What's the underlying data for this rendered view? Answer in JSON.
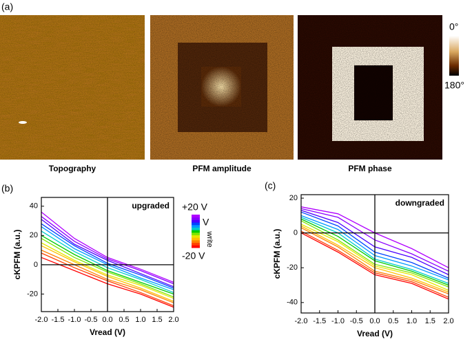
{
  "figure": {
    "panel_label": "(a)",
    "captions": [
      "Topography",
      "PFM amplitude",
      "PFM phase"
    ],
    "colorbar": {
      "top": "0°",
      "bottom": "180°"
    }
  },
  "chart_data": [
    {
      "type": "line",
      "panel_label": "(b)",
      "annotation": "upgraded",
      "x_label": "Vread (V)",
      "y_label": "cKPFM (a.u.)",
      "legend": {
        "top": "+20 V",
        "title": "V",
        "subscript": "write",
        "bottom": "-20 V"
      },
      "xlim": [
        -2,
        2
      ],
      "ylim": [
        -32,
        46
      ],
      "xticks": [
        {
          "value": -2,
          "label": "-2.0"
        },
        -1.5,
        {
          "value": -1,
          "label": "-1.0"
        },
        -0.5,
        {
          "value": 0,
          "label": "0.0"
        },
        0.5,
        {
          "value": 1,
          "label": "1.0"
        },
        1.5,
        {
          "value": 2,
          "label": "2.0"
        }
      ],
      "yticks": [
        -20,
        0,
        20,
        40
      ],
      "x": [
        -2,
        -1,
        0,
        1,
        2
      ],
      "series": [
        {
          "color": "#ff0000",
          "values": [
            5,
            -4,
            -13,
            -20,
            -29
          ]
        },
        {
          "color": "#ff4000",
          "values": [
            8,
            -2,
            -11,
            -19,
            -28
          ]
        },
        {
          "color": "#ff8000",
          "values": [
            10,
            0,
            -10,
            -17,
            -26
          ]
        },
        {
          "color": "#ffbf00",
          "values": [
            13,
            2,
            -8,
            -16,
            -25
          ]
        },
        {
          "color": "#e6e600",
          "values": [
            15,
            3,
            -7,
            -14,
            -23
          ]
        },
        {
          "color": "#80e600",
          "values": [
            18,
            5,
            -5,
            -13,
            -22
          ]
        },
        {
          "color": "#00cc00",
          "values": [
            20,
            7,
            -4,
            -12,
            -20
          ]
        },
        {
          "color": "#00cccc",
          "values": [
            23,
            9,
            -2,
            -10,
            -19
          ]
        },
        {
          "color": "#0099ff",
          "values": [
            26,
            11,
            0,
            -9,
            -17
          ]
        },
        {
          "color": "#0044ff",
          "values": [
            28,
            13,
            1,
            -7,
            -16
          ]
        },
        {
          "color": "#4b00ff",
          "values": [
            31,
            14,
            3,
            -6,
            -15
          ]
        },
        {
          "color": "#8a00ff",
          "values": [
            33,
            16,
            4,
            -4,
            -13
          ]
        },
        {
          "color": "#b000ff",
          "values": [
            36,
            18,
            5,
            -3,
            -12
          ]
        }
      ]
    },
    {
      "type": "line",
      "panel_label": "(c)",
      "annotation": "downgraded",
      "x_label": "Vread (V)",
      "y_label": "cKPFM (a.u.)",
      "xlim": [
        -2,
        2
      ],
      "ylim": [
        -46,
        22
      ],
      "xticks": [
        {
          "value": -2,
          "label": "-2.0"
        },
        -1.5,
        {
          "value": -1,
          "label": "-1.0"
        },
        -0.5,
        {
          "value": 0,
          "label": "0.0"
        },
        0.5,
        {
          "value": 1,
          "label": "1.0"
        },
        1.5,
        {
          "value": 2,
          "label": "2.0"
        }
      ],
      "yticks": [
        -40,
        -20,
        0,
        20
      ],
      "x": [
        -2,
        -1,
        0,
        1,
        2
      ],
      "series": [
        {
          "color": "#ff0000",
          "values": [
            0,
            -11,
            -24,
            -29,
            -38
          ]
        },
        {
          "color": "#ff4000",
          "values": [
            1,
            -10,
            -23,
            -28,
            -37
          ]
        },
        {
          "color": "#ff8000",
          "values": [
            3,
            -8,
            -22,
            -27,
            -35
          ]
        },
        {
          "color": "#ffbf00",
          "values": [
            4,
            -7,
            -20,
            -26,
            -34
          ]
        },
        {
          "color": "#e6e600",
          "values": [
            5,
            -5,
            -19,
            -24,
            -33
          ]
        },
        {
          "color": "#80e600",
          "values": [
            7,
            -4,
            -18,
            -23,
            -31
          ]
        },
        {
          "color": "#00cc00",
          "values": [
            8,
            -2,
            -16,
            -22,
            -30
          ]
        },
        {
          "color": "#00cccc",
          "values": [
            9,
            0,
            -15,
            -21,
            -29
          ]
        },
        {
          "color": "#0099ff",
          "values": [
            10,
            2,
            -13,
            -19,
            -27
          ]
        },
        {
          "color": "#0044ff",
          "values": [
            12,
            4,
            -11,
            -17,
            -26
          ]
        },
        {
          "color": "#4b00ff",
          "values": [
            13,
            6,
            -8,
            -14,
            -24
          ]
        },
        {
          "color": "#8a00ff",
          "values": [
            14,
            9,
            -4,
            -12,
            -22
          ]
        },
        {
          "color": "#b000ff",
          "values": [
            15,
            11,
            0,
            -9,
            -20
          ]
        }
      ]
    }
  ]
}
